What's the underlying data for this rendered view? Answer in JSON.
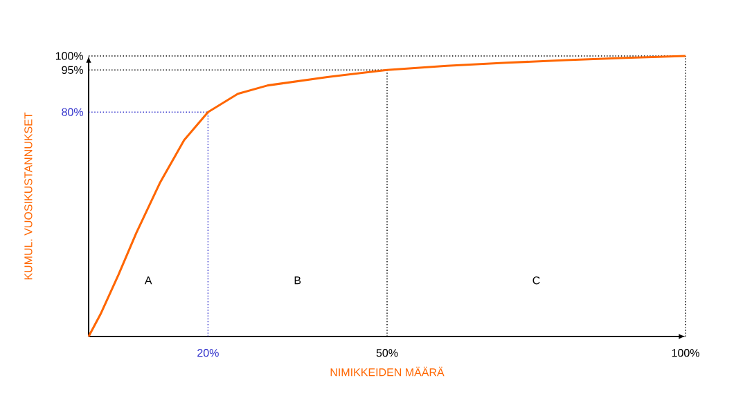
{
  "chart_data": {
    "type": "line",
    "xlabel": "NIMIKKEIDEN MÄÄRÄ",
    "ylabel": "KUMUL. VUOSIKUSTANNUKSET",
    "x": [
      0,
      2,
      5,
      8,
      12,
      16,
      20,
      25,
      30,
      40,
      50,
      60,
      70,
      80,
      90,
      100
    ],
    "series": [
      {
        "color": "#ff6600",
        "values": [
          0,
          8,
          22,
          37,
          55,
          70,
          80,
          86.5,
          89.5,
          92.5,
          95,
          96.5,
          97.6,
          98.5,
          99.3,
          100
        ]
      }
    ],
    "xlim": [
      0,
      100
    ],
    "ylim": [
      0,
      100
    ],
    "xticks": [
      {
        "value": 20,
        "label": "20%"
      },
      {
        "value": 50,
        "label": "50%"
      },
      {
        "value": 100,
        "label": "100%"
      }
    ],
    "yticks": [
      {
        "value": 80,
        "label": "80%"
      },
      {
        "value": 95,
        "label": "95%"
      },
      {
        "value": 100,
        "label": "100%"
      }
    ],
    "ref_lines": [
      {
        "axis": "y",
        "value": 100,
        "color": "#000000",
        "line_style": "dotted"
      },
      {
        "axis": "y",
        "value": 95,
        "color": "#000000",
        "line_style": "dotted"
      },
      {
        "axis": "y",
        "value": 80,
        "color": "#3333cc",
        "line_style": "dotted"
      },
      {
        "axis": "x",
        "value": 20,
        "color": "#3333cc",
        "line_style": "dotted"
      },
      {
        "axis": "x",
        "value": 50,
        "color": "#000000",
        "line_style": "dotted"
      },
      {
        "axis": "x",
        "value": 100,
        "color": "#000000",
        "line_style": "dotted"
      }
    ],
    "annotations": [
      "A",
      "B",
      "C"
    ]
  }
}
